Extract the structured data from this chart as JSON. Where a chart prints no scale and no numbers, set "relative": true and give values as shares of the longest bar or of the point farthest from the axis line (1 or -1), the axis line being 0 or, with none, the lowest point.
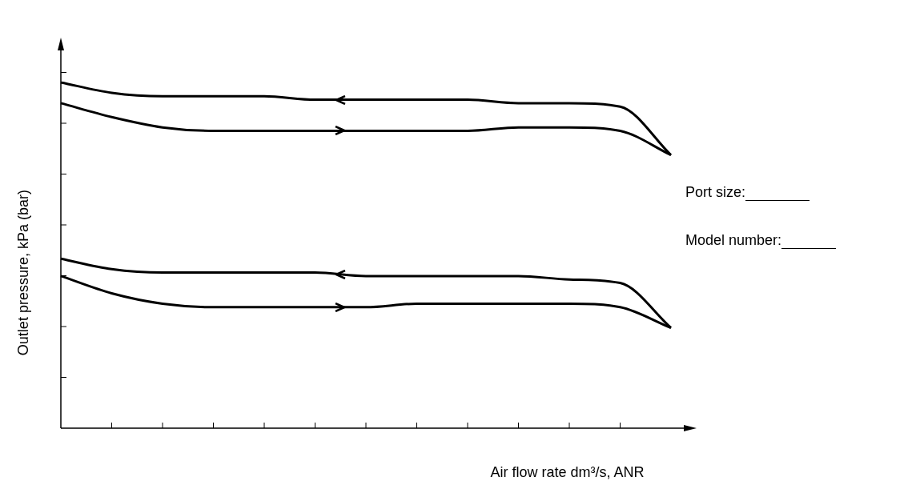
{
  "chart_data": {
    "type": "line",
    "relative": true,
    "xlabel": "Air flow rate dm³/s, ANR",
    "ylabel": "Outlet pressure, kPa (bar)",
    "categories": [
      null,
      null,
      null,
      null,
      null,
      null,
      null,
      null,
      null,
      null,
      null,
      null,
      null
    ],
    "series": [
      {
        "color": "#000000",
        "values": [
          1,
          0.97,
          0.96,
          0.96,
          0.96,
          0.95,
          0.95,
          0.95,
          0.95,
          0.94,
          0.94,
          0.93,
          0.79
        ]
      },
      {
        "color": "#000000",
        "values": [
          0.94,
          0.9,
          0.87,
          0.86,
          0.86,
          0.86,
          0.86,
          0.86,
          0.86,
          0.87,
          0.87,
          0.86,
          0.79
        ]
      },
      {
        "color": "#000000",
        "values": [
          0.49,
          0.46,
          0.45,
          0.45,
          0.45,
          0.45,
          0.44,
          0.44,
          0.44,
          0.44,
          0.43,
          0.42,
          0.29
        ]
      },
      {
        "color": "#000000",
        "values": [
          0.44,
          0.39,
          0.36,
          0.35,
          0.35,
          0.35,
          0.35,
          0.36,
          0.36,
          0.36,
          0.36,
          0.35,
          0.29
        ]
      }
    ],
    "annotations": [
      "Port size:",
      "Model number:"
    ],
    "marker": "none",
    "line_style": "solid"
  }
}
